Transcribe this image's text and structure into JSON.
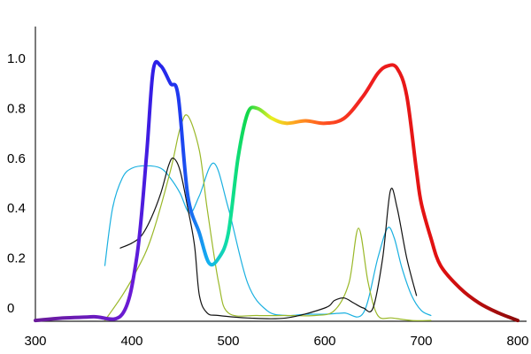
{
  "chart_data": {
    "type": "line",
    "title": "",
    "xlabel": "",
    "ylabel": "",
    "xlim": [
      300,
      800
    ],
    "ylim": [
      -0.05,
      1.15
    ],
    "x_ticks": [
      300,
      400,
      500,
      600,
      700,
      800
    ],
    "x_tick_labels": [
      "300",
      "400",
      "500",
      "600",
      "700",
      "800"
    ],
    "y_ticks": [
      0,
      0.2,
      0.4,
      0.6,
      0.8,
      1.0
    ],
    "y_tick_labels": [
      "0",
      "0.2",
      "0.4",
      "0.6",
      "0.8",
      "1.0"
    ],
    "grid": false,
    "legend": "none",
    "series": [
      {
        "color": "gradient-spectrum",
        "stroke_width": 4,
        "gradient_stops": [
          {
            "x": 300,
            "color": "#6a1b9a"
          },
          {
            "x": 400,
            "color": "#6a1bd6"
          },
          {
            "x": 425,
            "color": "#2a1ee8"
          },
          {
            "x": 450,
            "color": "#1e3cf0"
          },
          {
            "x": 480,
            "color": "#14b4f0"
          },
          {
            "x": 500,
            "color": "#10e0a0"
          },
          {
            "x": 520,
            "color": "#10d848"
          },
          {
            "x": 545,
            "color": "#e8f020"
          },
          {
            "x": 570,
            "color": "#ffa020"
          },
          {
            "x": 600,
            "color": "#ff5020"
          },
          {
            "x": 640,
            "color": "#f02020"
          },
          {
            "x": 720,
            "color": "#e01010"
          },
          {
            "x": 800,
            "color": "#8b0a0a"
          }
        ],
        "x": [
          300,
          330,
          360,
          390,
          405,
          415,
          422,
          430,
          440,
          448,
          458,
          470,
          480,
          490,
          500,
          510,
          520,
          530,
          545,
          560,
          580,
          600,
          620,
          640,
          655,
          665,
          675,
          685,
          695,
          700,
          710,
          720,
          740,
          760,
          780,
          800
        ],
        "y": [
          -0.05,
          -0.04,
          -0.035,
          -0.025,
          0.2,
          0.6,
          0.95,
          0.97,
          0.9,
          0.85,
          0.45,
          0.3,
          0.18,
          0.2,
          0.3,
          0.6,
          0.78,
          0.8,
          0.76,
          0.74,
          0.75,
          0.74,
          0.76,
          0.85,
          0.94,
          0.97,
          0.96,
          0.85,
          0.55,
          0.42,
          0.28,
          0.17,
          0.08,
          0.02,
          -0.02,
          -0.05
        ]
      },
      {
        "color": "#1ab0e0",
        "stroke_width": 1.2,
        "x": [
          372,
          380,
          390,
          400,
          415,
          430,
          440,
          450,
          460,
          470,
          485,
          500,
          520,
          540,
          560,
          580,
          600,
          620,
          640,
          655,
          665,
          672,
          680,
          690,
          700,
          710
        ],
        "y": [
          0.17,
          0.4,
          0.52,
          0.56,
          0.57,
          0.56,
          0.52,
          0.46,
          0.38,
          0.45,
          0.58,
          0.4,
          0.1,
          -0.01,
          -0.03,
          -0.025,
          -0.025,
          -0.02,
          -0.02,
          0.2,
          0.32,
          0.28,
          0.16,
          0.05,
          -0.01,
          -0.03
        ]
      },
      {
        "color": "#9ab828",
        "stroke_width": 1.2,
        "x": [
          372,
          390,
          405,
          420,
          440,
          450,
          458,
          470,
          478,
          490,
          500,
          530,
          560,
          590,
          610,
          625,
          635,
          645,
          655,
          670,
          690,
          710
        ],
        "y": [
          -0.05,
          0.05,
          0.15,
          0.28,
          0.55,
          0.72,
          0.77,
          0.63,
          0.4,
          0.1,
          -0.02,
          -0.03,
          -0.03,
          -0.03,
          -0.01,
          0.1,
          0.32,
          0.1,
          -0.03,
          -0.04,
          -0.05,
          -0.05
        ]
      },
      {
        "color": "#111111",
        "stroke_width": 1.2,
        "x": [
          388,
          400,
          410,
          420,
          430,
          438,
          443,
          450,
          458,
          465,
          470,
          478,
          490,
          520,
          560,
          600,
          610,
          620,
          630,
          640,
          650,
          660,
          668,
          675,
          685,
          695
        ],
        "y": [
          0.24,
          0.26,
          0.29,
          0.36,
          0.46,
          0.57,
          0.6,
          0.55,
          0.4,
          0.25,
          0.05,
          -0.02,
          -0.03,
          -0.04,
          -0.04,
          0.0,
          0.03,
          0.04,
          0.02,
          0.0,
          0.0,
          0.2,
          0.47,
          0.4,
          0.2,
          0.05
        ]
      }
    ]
  }
}
